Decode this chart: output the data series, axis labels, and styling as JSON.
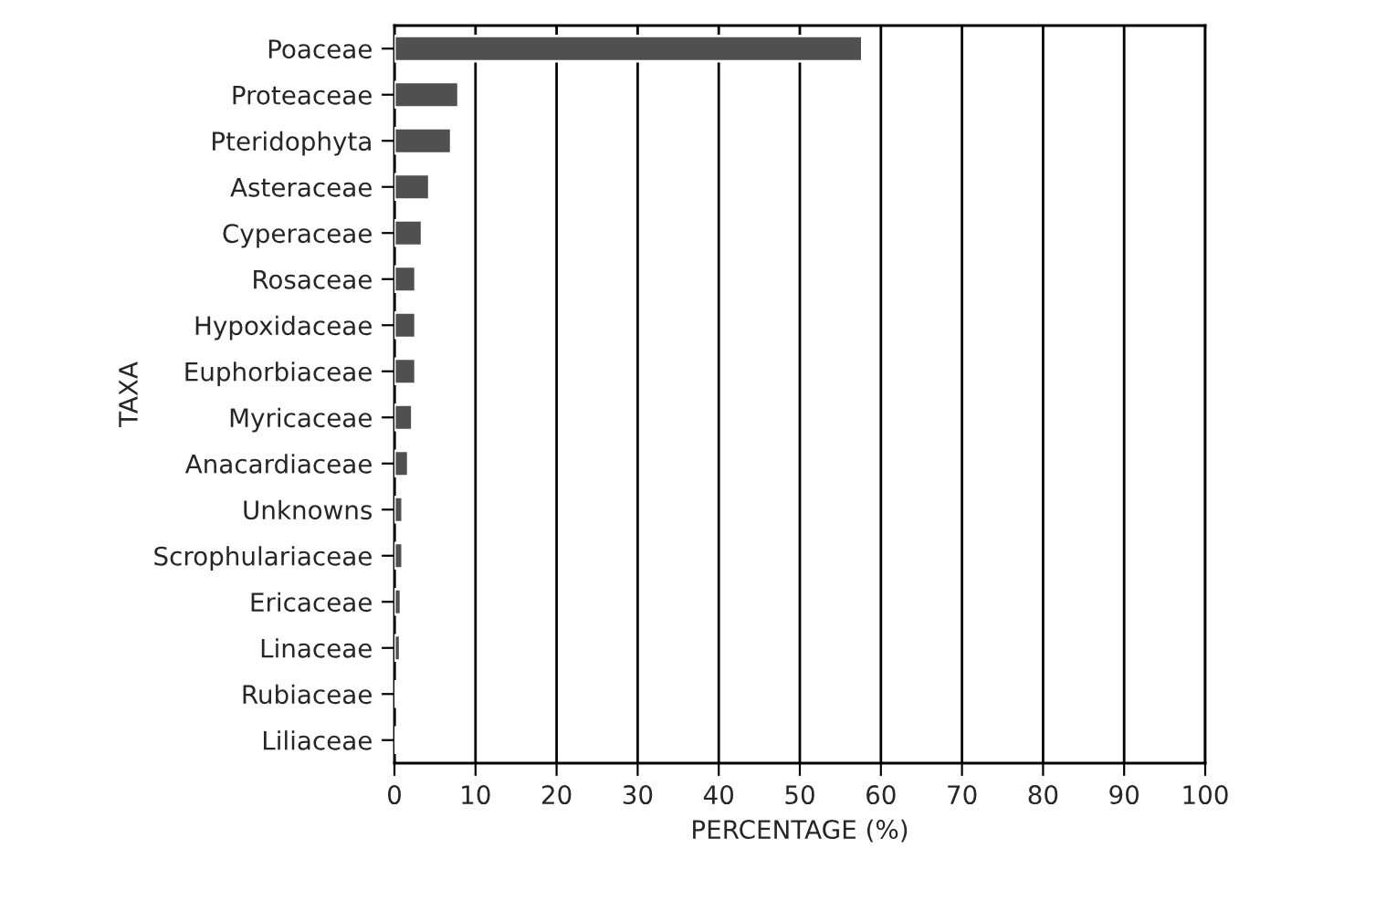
{
  "chart_data": {
    "type": "bar",
    "orientation": "horizontal",
    "xlabel": "PERCENTAGE (%)",
    "ylabel": "TAXA",
    "categories": [
      "Poaceae",
      "Proteaceae",
      "Pteridophyta",
      "Asteraceae",
      "Cyperaceae",
      "Rosaceae",
      "Hypoxidaceae",
      "Euphorbiaceae",
      "Myricaceae",
      "Anacardiaceae",
      "Unknowns",
      "Scrophulariaceae",
      "Ericaceae",
      "Linaceae",
      "Rubiaceae",
      "Liliaceae"
    ],
    "values": [
      57.7,
      7.9,
      7.0,
      4.3,
      3.4,
      2.6,
      2.6,
      2.6,
      2.2,
      1.7,
      1.0,
      1.0,
      0.8,
      0.7,
      0.3,
      0.3
    ],
    "color": "#505050",
    "xlim": [
      0,
      100
    ],
    "xticks": [
      0,
      10,
      20,
      30,
      40,
      50,
      60,
      70,
      80,
      90,
      100
    ],
    "grid": "x"
  }
}
